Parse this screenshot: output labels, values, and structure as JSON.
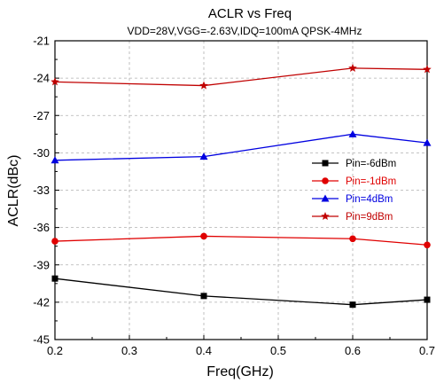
{
  "chart_data": {
    "type": "line",
    "title": "ACLR vs  Freq",
    "subtitle": "VDD=28V,VGG=-2.63V,IDQ=100mA  QPSK-4MHz",
    "xlabel": "Freq(GHz)",
    "ylabel": "ACLR(dBc)",
    "xlim": [
      0.2,
      0.7
    ],
    "ylim": [
      -45,
      -21
    ],
    "xticks": [
      0.2,
      0.3,
      0.4,
      0.5,
      0.6,
      0.7
    ],
    "xtick_labels": [
      "0.2",
      "0.3",
      "0.4",
      "0.5",
      "0.6",
      "0.7"
    ],
    "yticks": [
      -45,
      -42,
      -39,
      -36,
      -33,
      -30,
      -27,
      -24,
      -21
    ],
    "ytick_labels": [
      "-45",
      "-42",
      "-39",
      "-36",
      "-33",
      "-30",
      "-27",
      "-24",
      "-21"
    ],
    "grid": true,
    "legend_position": "right",
    "x": [
      0.2,
      0.4,
      0.6,
      0.7
    ],
    "series": [
      {
        "name": "Pin=-6dBm",
        "color": "#000000",
        "marker": "square",
        "values": [
          -40.1,
          -41.5,
          -42.2,
          -41.8
        ]
      },
      {
        "name": "Pin=-1dBm",
        "color": "#e00000",
        "marker": "circle",
        "values": [
          -37.1,
          -36.7,
          -36.9,
          -37.4
        ]
      },
      {
        "name": "Pin=4dBm",
        "color": "#0000e0",
        "marker": "triangle",
        "values": [
          -30.6,
          -30.3,
          -28.5,
          -29.2
        ]
      },
      {
        "name": "Pin=9dBm",
        "color": "#c00000",
        "marker": "star",
        "values": [
          -24.3,
          -24.6,
          -23.2,
          -23.3
        ]
      }
    ]
  }
}
